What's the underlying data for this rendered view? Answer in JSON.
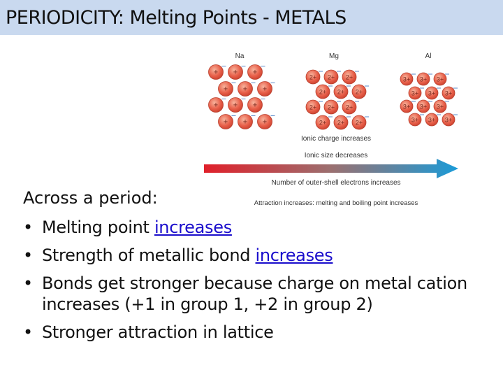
{
  "title": "PERIODICITY: Melting Points - METALS",
  "diagram": {
    "elements": [
      {
        "symbol": "Na",
        "charge": "+"
      },
      {
        "symbol": "Mg",
        "charge": "2+"
      },
      {
        "symbol": "Al",
        "charge": "3+"
      }
    ],
    "labels": {
      "charge": "Ionic charge increases",
      "size": "Ionic size decreases",
      "electrons": "Number of outer-shell electrons increases",
      "attraction": "Attraction increases: melting and boiling point increases"
    },
    "arrow_colors": [
      "#e0202a",
      "#1a9bd8"
    ],
    "ion_color": "#e8604a"
  },
  "body": {
    "heading": "Across a period:",
    "bullets": [
      {
        "text": "Melting point ",
        "link": "increases"
      },
      {
        "text": "Strength of metallic bond ",
        "link": "increases"
      },
      {
        "text": "Bonds get stronger because charge on metal cation increases (+1 in group 1, +2 in group 2)"
      },
      {
        "text": "Stronger attraction in lattice"
      }
    ]
  }
}
